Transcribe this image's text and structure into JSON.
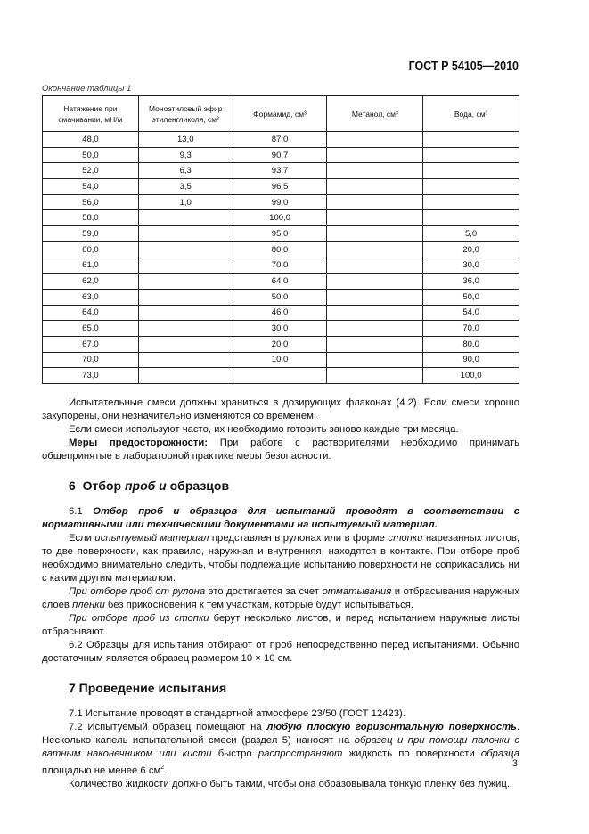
{
  "header": "ГОСТ Р 54105—2010",
  "table_caption": "Окончание таблицы 1",
  "table": {
    "headers": [
      "Натяжение при смачивании, мН/м",
      "Моноэтиловый эфир этиленгликоля, см³",
      "Формамид, см³",
      "Метанол, см³",
      "Вода, см³"
    ],
    "rows": [
      [
        "48,0",
        "13,0",
        "87,0",
        "",
        ""
      ],
      [
        "50,0",
        "9,3",
        "90,7",
        "",
        ""
      ],
      [
        "52,0",
        "6,3",
        "93,7",
        "",
        ""
      ],
      [
        "54,0",
        "3,5",
        "96,5",
        "",
        ""
      ],
      [
        "56,0",
        "1,0",
        "99,0",
        "",
        ""
      ],
      [
        "58,0",
        "",
        "100,0",
        "",
        ""
      ],
      [
        "59,0",
        "",
        "95,0",
        "",
        "5,0"
      ],
      [
        "60,0",
        "",
        "80,0",
        "",
        "20,0"
      ],
      [
        "61,0",
        "",
        "70,0",
        "",
        "30,0"
      ],
      [
        "62,0",
        "",
        "64,0",
        "",
        "36,0"
      ],
      [
        "63,0",
        "",
        "50,0",
        "",
        "50,0"
      ],
      [
        "64,0",
        "",
        "46,0",
        "",
        "54,0"
      ],
      [
        "65,0",
        "",
        "30,0",
        "",
        "70,0"
      ],
      [
        "67,0",
        "",
        "20,0",
        "",
        "80,0"
      ],
      [
        "70,0",
        "",
        "10,0",
        "",
        "90,0"
      ],
      [
        "73,0",
        "",
        "",
        "",
        "100,0"
      ]
    ]
  },
  "p1": "Испытательные смеси должны храниться в дозирующих флаконах (4.2). Если смеси хорошо закупорены, они незначительно изменяются со временем.",
  "p2": "Если смеси используют часто, их необходимо готовить заново каждые три месяца.",
  "p3_bold": "Меры предосторожности:",
  "p3": " При работе с растворителями необходимо принимать общепринятые в лабораторной практике меры безопасности.",
  "s6": {
    "num": "6",
    "t1": "Отбор ",
    "t2": "проб и",
    "t3": " образцов"
  },
  "p61_num": "6.1 ",
  "p61": "Отбор проб и образцов для испытаний проводят в соответствии с нормативными или техническими документами на испытуемый материал.",
  "p62a": {
    "a": "Если ",
    "b": "испытуемый материал",
    "c": " представлен в рулонах или в форме ",
    "d": "стопки",
    "e": " нарезанных листов, то две поверхности, как правило, наружная и внутренняя, находятся в контакте. При отборе проб необходимо внимательно следить, чтобы подлежащие испытанию поверхности не соприкасались ни с каким другим материалом."
  },
  "p63": {
    "a": "При отборе проб от рулона",
    "b": " это достигается за счет ",
    "c": "отматывания",
    "d": " и отбрасывания наружных слоев ",
    "e": "пленки",
    "f": " без прикосновения к тем участкам, которые будут испытываться."
  },
  "p64": {
    "a": "При отборе проб из стопки",
    "b": " берут несколько листов, и перед испытанием наружные листы отбрасывают."
  },
  "p65": "6.2 Образцы для испытания отбирают от проб непосредственно перед испытаниями. Обычно достаточным является образец размером 10 × 10 см.",
  "s7": "7 Проведение испытания",
  "p71": "7.1 Испытание проводят в стандартной атмосфере 23/50 (ГОСТ 12423).",
  "p72": {
    "a": "7.2 Испытуемый образец помещают на ",
    "b": "любую плоскую горизонтальную поверхность",
    "c": ". Несколько капель испытательной смеси (раздел 5) наносят на ",
    "d": "образец и при помощи палочки с ватным наконечником или кисти",
    "e": " быстро ",
    "f": "распространяют",
    "g": " жидкость по поверхности ",
    "h": "образца",
    "i": " площадью не менее 6 см",
    "j": "2",
    "k": "."
  },
  "p73": "Количество жидкости должно быть таким, чтобы она образовывала тонкую пленку без лужиц.",
  "page_number": "3"
}
